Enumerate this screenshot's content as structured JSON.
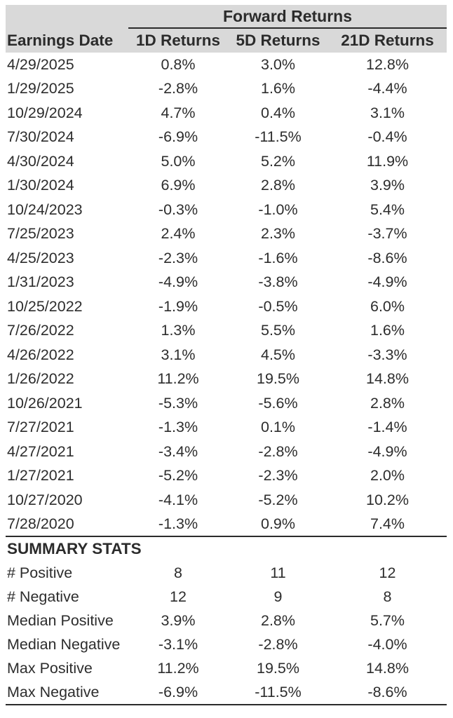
{
  "colors": {
    "header_bg": "#d9d9d9",
    "text": "#2d2d2d",
    "rule": "#2b2b2b",
    "page_bg": "#ffffff"
  },
  "chart_data": {
    "type": "table",
    "title": "Forward Returns",
    "columns": [
      "Earnings Date",
      "1D Returns",
      "5D Returns",
      "21D Returns"
    ],
    "rows": [
      [
        "4/29/2025",
        "0.8%",
        "3.0%",
        "12.8%"
      ],
      [
        "1/29/2025",
        "-2.8%",
        "1.6%",
        "-4.4%"
      ],
      [
        "10/29/2024",
        "4.7%",
        "0.4%",
        "3.1%"
      ],
      [
        "7/30/2024",
        "-6.9%",
        "-11.5%",
        "-0.4%"
      ],
      [
        "4/30/2024",
        "5.0%",
        "5.2%",
        "11.9%"
      ],
      [
        "1/30/2024",
        "6.9%",
        "2.8%",
        "3.9%"
      ],
      [
        "10/24/2023",
        "-0.3%",
        "-1.0%",
        "5.4%"
      ],
      [
        "7/25/2023",
        "2.4%",
        "2.3%",
        "-3.7%"
      ],
      [
        "4/25/2023",
        "-2.3%",
        "-1.6%",
        "-8.6%"
      ],
      [
        "1/31/2023",
        "-4.9%",
        "-3.8%",
        "-4.9%"
      ],
      [
        "10/25/2022",
        "-1.9%",
        "-0.5%",
        "6.0%"
      ],
      [
        "7/26/2022",
        "1.3%",
        "5.5%",
        "1.6%"
      ],
      [
        "4/26/2022",
        "3.1%",
        "4.5%",
        "-3.3%"
      ],
      [
        "1/26/2022",
        "11.2%",
        "19.5%",
        "14.8%"
      ],
      [
        "10/26/2021",
        "-5.3%",
        "-5.6%",
        "2.8%"
      ],
      [
        "7/27/2021",
        "-1.3%",
        "0.1%",
        "-1.4%"
      ],
      [
        "4/27/2021",
        "-3.4%",
        "-2.8%",
        "-4.9%"
      ],
      [
        "1/27/2021",
        "-5.2%",
        "-2.3%",
        "2.0%"
      ],
      [
        "10/27/2020",
        "-4.1%",
        "-5.2%",
        "10.2%"
      ],
      [
        "7/28/2020",
        "-1.3%",
        "0.9%",
        "7.4%"
      ]
    ],
    "summary_title": "SUMMARY STATS",
    "summary_rows": [
      [
        "# Positive",
        "8",
        "11",
        "12"
      ],
      [
        "# Negative",
        "12",
        "9",
        "8"
      ],
      [
        "Median Positive",
        "3.9%",
        "2.8%",
        "5.7%"
      ],
      [
        "Median Negative",
        "-3.1%",
        "-2.8%",
        "-4.0%"
      ],
      [
        "Max Positive",
        "11.2%",
        "19.5%",
        "14.8%"
      ],
      [
        "Max Negative",
        "-6.9%",
        "-11.5%",
        "-8.6%"
      ]
    ]
  }
}
